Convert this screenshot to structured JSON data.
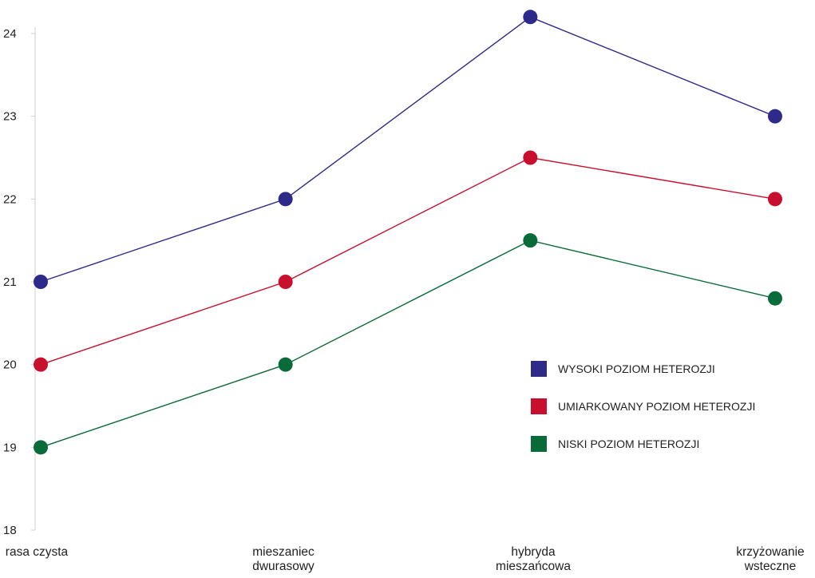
{
  "chart_data": {
    "type": "line",
    "categories": [
      [
        "rasa czysta"
      ],
      [
        "mieszaniec",
        "dwurasowy"
      ],
      [
        "hybryda",
        "mieszańcowa"
      ],
      [
        "krzyżowanie",
        "wsteczne"
      ]
    ],
    "series": [
      {
        "name": "WYSOKI POZIOM HETEROZJI",
        "color": "#2e2a8a",
        "values": [
          21.0,
          22.0,
          24.2,
          23.0
        ]
      },
      {
        "name": "UMIARKOWANY POZIOM HETEROZJI",
        "color": "#c8102e",
        "values": [
          20.0,
          21.0,
          22.5,
          22.0
        ]
      },
      {
        "name": "NISKI POZIOM HETEROZJI",
        "color": "#0a6b3a",
        "values": [
          19.0,
          20.0,
          21.5,
          20.8
        ]
      }
    ],
    "ylim": [
      18,
      24
    ],
    "yticks": [
      18,
      19,
      20,
      21,
      22,
      23,
      24
    ],
    "legend_position": "right",
    "grid": false,
    "title": "",
    "xlabel": "",
    "ylabel": ""
  }
}
